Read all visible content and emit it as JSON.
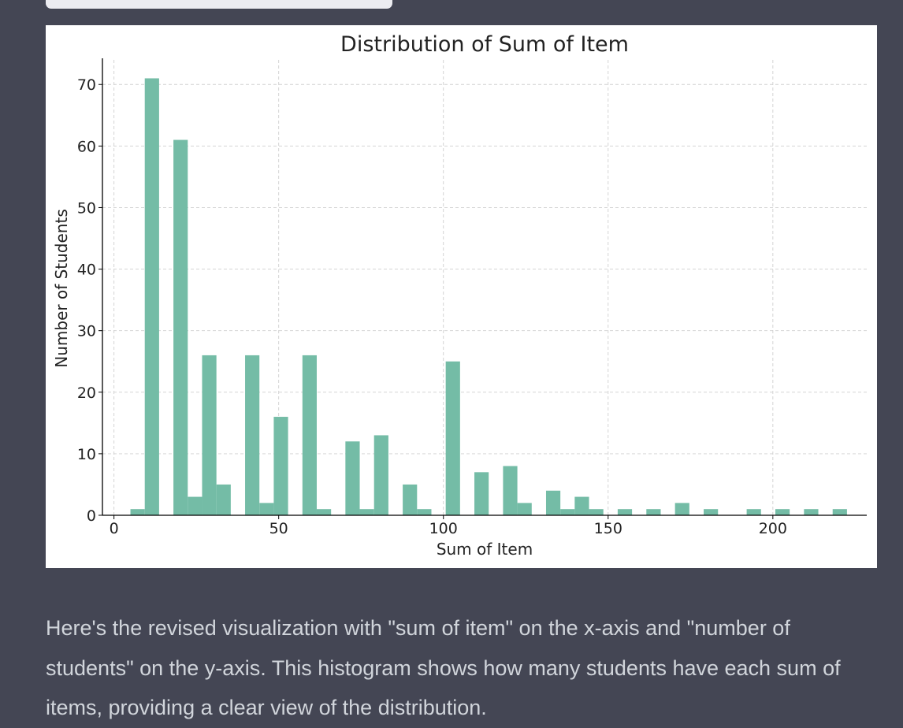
{
  "message": {
    "text": "Here's the revised visualization with \"sum of item\" on the x-axis and \"number of students\" on the y-axis. This histogram shows how many students have each sum of items, providing a clear view of the distribution."
  },
  "colors": {
    "page_background": "#444654",
    "bar": "#74bca6",
    "text": "#d1d5db"
  },
  "chart_data": {
    "type": "bar",
    "title": "Distribution of Sum of Item",
    "xlabel": "Sum of Item",
    "ylabel": "Number of Students",
    "xlim": [
      -3.5,
      228.5
    ],
    "ylim": [
      0,
      74
    ],
    "x_ticks": [
      0,
      50,
      100,
      150,
      200
    ],
    "y_ticks": [
      0,
      10,
      20,
      30,
      40,
      50,
      60,
      70
    ],
    "grid": true,
    "bin_width": 4.35,
    "bin_starts": [
      5.0,
      9.35,
      18.05,
      22.4,
      26.75,
      31.1,
      39.8,
      44.15,
      48.5,
      57.2,
      61.55,
      70.25,
      74.6,
      78.95,
      87.65,
      92.0,
      100.7,
      109.4,
      118.1,
      122.45,
      131.15,
      135.5,
      139.85,
      144.2,
      152.9,
      161.6,
      170.3,
      179.0,
      192.05,
      200.75,
      209.45,
      218.15
    ],
    "values": [
      1,
      71,
      61,
      3,
      26,
      5,
      26,
      2,
      16,
      26,
      1,
      12,
      1,
      13,
      5,
      1,
      25,
      7,
      8,
      2,
      4,
      1,
      3,
      1,
      1,
      1,
      2,
      1,
      1,
      1,
      1,
      1
    ]
  }
}
